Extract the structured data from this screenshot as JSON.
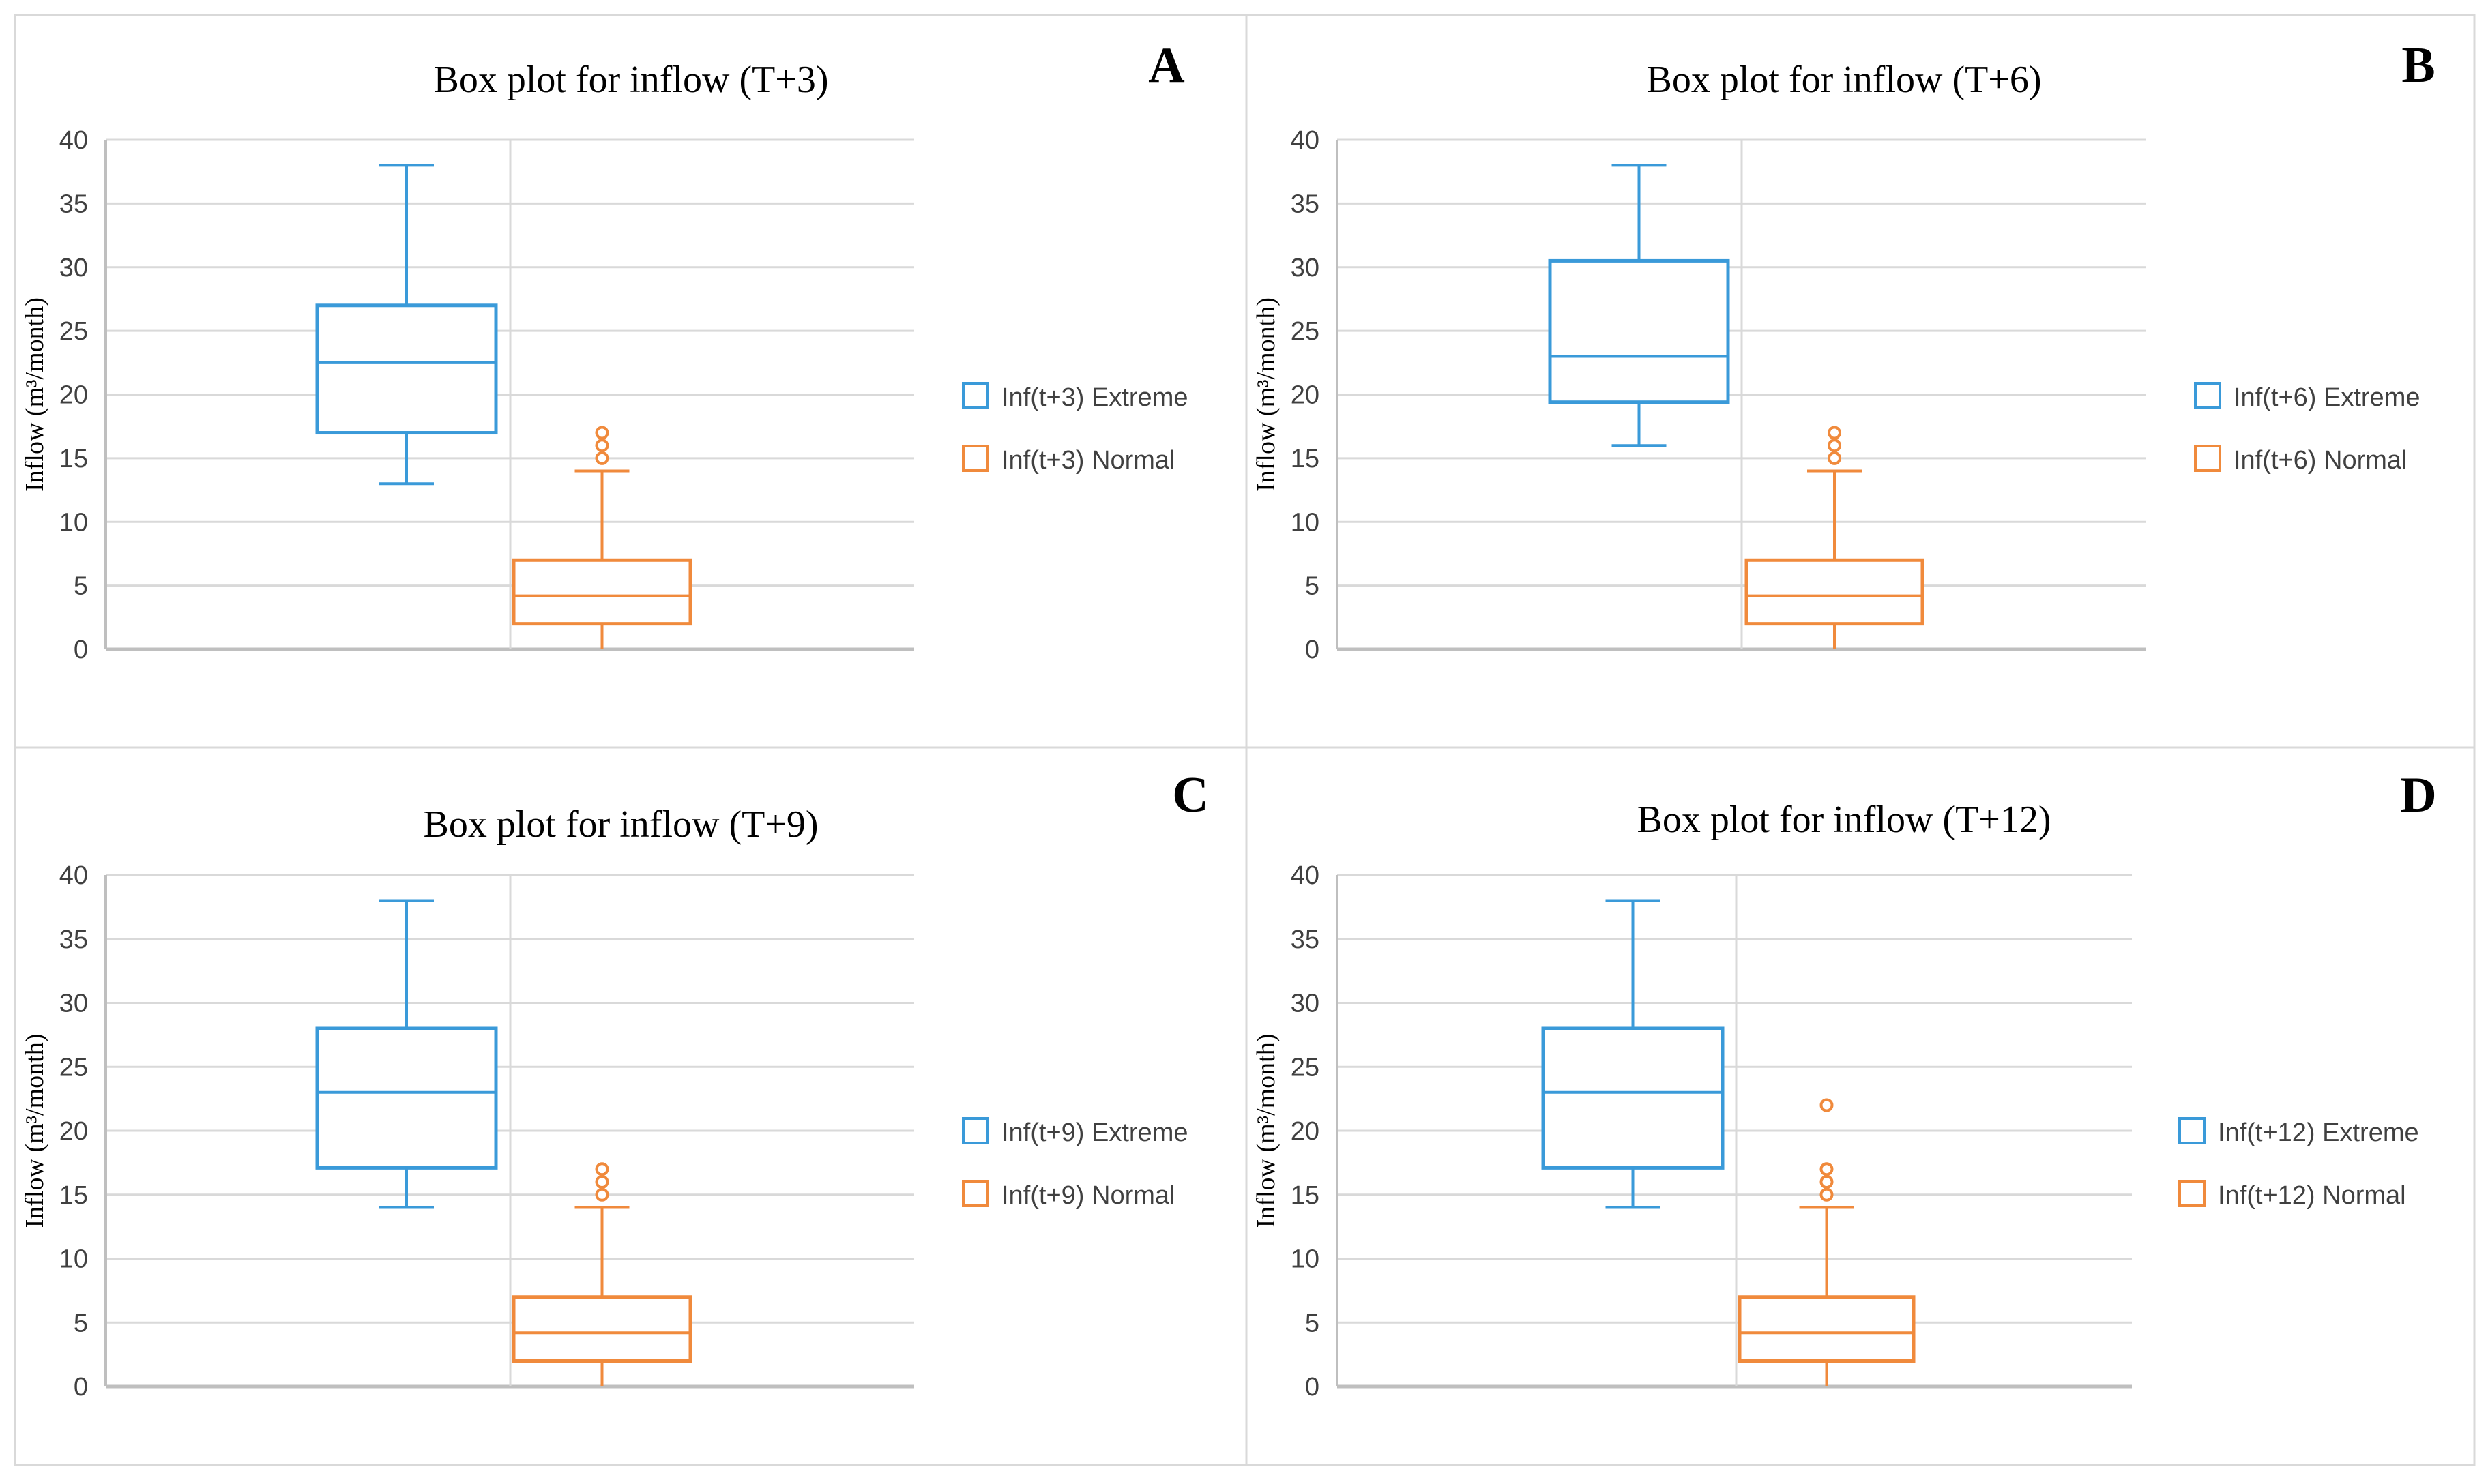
{
  "colors": {
    "extreme": "#3a9ad9",
    "normal": "#f08a3c",
    "grid": "#d9d9d9",
    "axis": "#bfbfbf",
    "panel_border": "#d9d9d9"
  },
  "chart_data": [
    {
      "type": "box",
      "panel_letter": "A",
      "title": "Box plot for inflow (T+3)",
      "ylabel": "Inflow (m³/month)",
      "ylim": [
        0,
        40
      ],
      "yticks": [
        "0",
        "5",
        "10",
        "15",
        "20",
        "25",
        "30",
        "35",
        "40"
      ],
      "legend_position": "right",
      "series": [
        {
          "name": "Inf(t+3) Extreme",
          "color_key": "extreme",
          "min": 13,
          "q1": 17,
          "median": 22.5,
          "q3": 27,
          "max": 38,
          "outliers": []
        },
        {
          "name": "Inf(t+3) Normal",
          "color_key": "normal",
          "min": 0,
          "q1": 2,
          "median": 4.2,
          "q3": 7,
          "max": 14,
          "outliers": [
            15,
            16,
            17
          ]
        }
      ]
    },
    {
      "type": "box",
      "panel_letter": "B",
      "title": "Box plot for inflow (T+6)",
      "ylabel": "Inflow (m³/month)",
      "ylim": [
        0,
        40
      ],
      "yticks": [
        "0",
        "5",
        "10",
        "15",
        "20",
        "25",
        "30",
        "35",
        "40"
      ],
      "legend_position": "right",
      "series": [
        {
          "name": "Inf(t+6) Extreme",
          "color_key": "extreme",
          "min": 16,
          "q1": 19.4,
          "median": 23,
          "q3": 30.5,
          "max": 38,
          "outliers": []
        },
        {
          "name": "Inf(t+6) Normal",
          "color_key": "normal",
          "min": 0,
          "q1": 2,
          "median": 4.2,
          "q3": 7,
          "max": 14,
          "outliers": [
            15,
            16,
            17
          ]
        }
      ]
    },
    {
      "type": "box",
      "panel_letter": "C",
      "title": "Box plot for inflow (T+9)",
      "ylabel": "Inflow (m³/month)",
      "ylim": [
        0,
        40
      ],
      "yticks": [
        "0",
        "5",
        "10",
        "15",
        "20",
        "25",
        "30",
        "35",
        "40"
      ],
      "legend_position": "right",
      "series": [
        {
          "name": "Inf(t+9) Extreme",
          "color_key": "extreme",
          "min": 14,
          "q1": 17.1,
          "median": 23,
          "q3": 28,
          "max": 38,
          "outliers": []
        },
        {
          "name": "Inf(t+9) Normal",
          "color_key": "normal",
          "min": 0,
          "q1": 2,
          "median": 4.2,
          "q3": 7,
          "max": 14,
          "outliers": [
            15,
            16,
            17
          ]
        }
      ]
    },
    {
      "type": "box",
      "panel_letter": "D",
      "title": "Box plot for inflow (T+12)",
      "ylabel": "Inflow (m³/month)",
      "ylim": [
        0,
        40
      ],
      "yticks": [
        "0",
        "5",
        "10",
        "15",
        "20",
        "25",
        "30",
        "35",
        "40"
      ],
      "legend_position": "right",
      "series": [
        {
          "name": "Inf(t+12) Extreme",
          "color_key": "extreme",
          "min": 14,
          "q1": 17.1,
          "median": 23,
          "q3": 28,
          "max": 38,
          "outliers": []
        },
        {
          "name": "Inf(t+12) Normal",
          "color_key": "normal",
          "min": 0,
          "q1": 2,
          "median": 4.2,
          "q3": 7,
          "max": 14,
          "outliers": [
            15,
            16,
            17,
            22
          ]
        }
      ]
    }
  ]
}
